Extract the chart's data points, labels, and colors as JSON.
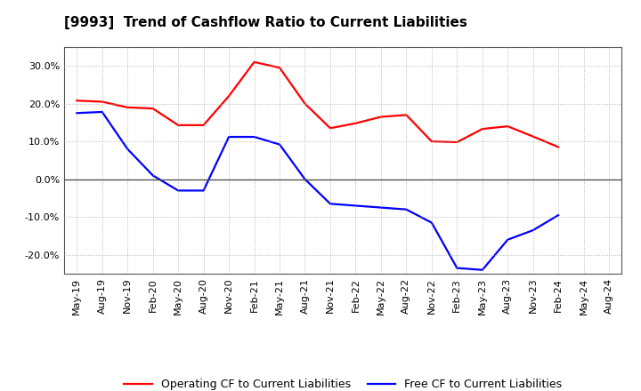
{
  "title": "[9993]  Trend of Cashflow Ratio to Current Liabilities",
  "x_labels": [
    "May-19",
    "Aug-19",
    "Nov-19",
    "Feb-20",
    "May-20",
    "Aug-20",
    "Nov-20",
    "Feb-21",
    "May-21",
    "Aug-21",
    "Nov-21",
    "Feb-22",
    "May-22",
    "Aug-22",
    "Nov-22",
    "Feb-23",
    "May-23",
    "Aug-23",
    "Nov-23",
    "Feb-24",
    "May-24",
    "Aug-24"
  ],
  "operating_cf": [
    0.208,
    0.205,
    0.19,
    0.187,
    0.143,
    0.143,
    0.22,
    0.31,
    0.295,
    0.2,
    0.135,
    0.148,
    0.165,
    0.17,
    0.1,
    0.098,
    0.133,
    0.14,
    0.113,
    0.085,
    null,
    null
  ],
  "free_cf": [
    0.175,
    0.178,
    0.08,
    0.01,
    -0.03,
    -0.03,
    0.112,
    0.112,
    0.092,
    0.0,
    -0.065,
    -0.07,
    -0.075,
    -0.08,
    -0.115,
    -0.235,
    -0.24,
    -0.16,
    -0.135,
    -0.095,
    null,
    null
  ],
  "ylim": [
    -0.25,
    0.35
  ],
  "yticks": [
    -0.2,
    -0.1,
    0.0,
    0.1,
    0.2,
    0.3
  ],
  "operating_color": "#ff0000",
  "free_color": "#0000ff",
  "background_color": "#ffffff",
  "grid_color": "#aaaaaa",
  "legend_labels": [
    "Operating CF to Current Liabilities",
    "Free CF to Current Liabilities"
  ]
}
